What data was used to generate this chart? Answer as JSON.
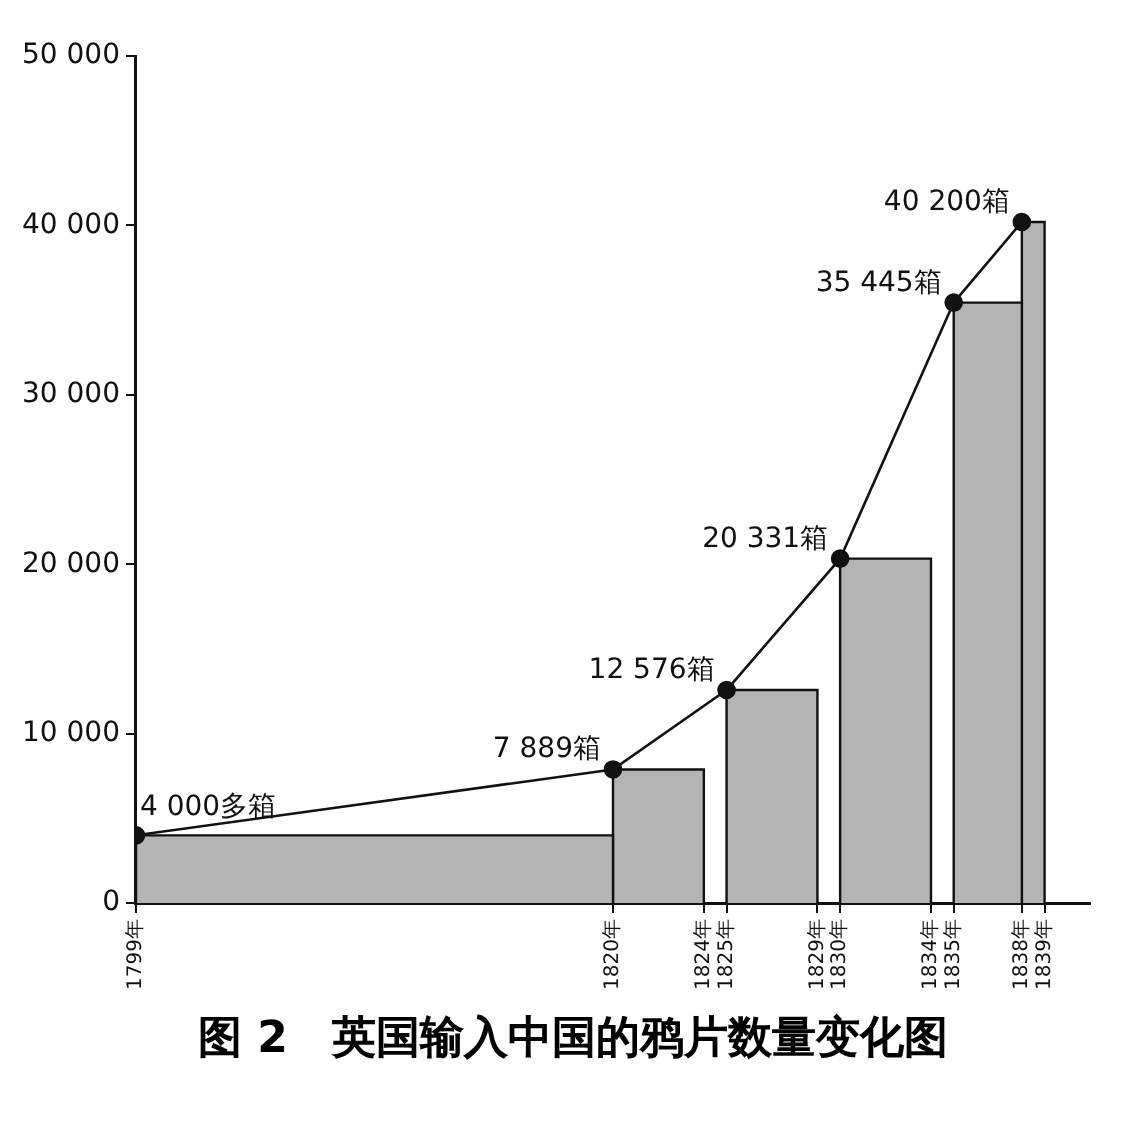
{
  "chart_data": {
    "type": "histogram",
    "title": "图 2　英国输入中国的鸦片数量变化图",
    "xlim": [
      1799,
      1841
    ],
    "xticks": [
      {
        "value": 1799,
        "label": "1799年"
      },
      {
        "value": 1820,
        "label": "1820年"
      },
      {
        "value": 1824,
        "label": "1824年"
      },
      {
        "value": 1825,
        "label": "1825年"
      },
      {
        "value": 1829,
        "label": "1829年"
      },
      {
        "value": 1830,
        "label": "1830年"
      },
      {
        "value": 1834,
        "label": "1834年"
      },
      {
        "value": 1835,
        "label": "1835年"
      },
      {
        "value": 1838,
        "label": "1838年"
      },
      {
        "value": 1839,
        "label": "1839年"
      }
    ],
    "ylim": [
      0,
      50000
    ],
    "yticks": [
      {
        "value": 0,
        "label": "0"
      },
      {
        "value": 10000,
        "label": "10 000"
      },
      {
        "value": 20000,
        "label": "20 000"
      },
      {
        "value": 30000,
        "label": "30 000"
      },
      {
        "value": 40000,
        "label": "40 000"
      },
      {
        "value": 50000,
        "label": "50 000"
      }
    ],
    "series": [
      {
        "color": "#b4b4b4",
        "bins": [
          1799,
          1820,
          1824,
          1825,
          1829,
          1830,
          1834,
          1835,
          1838,
          1839
        ],
        "values": [
          4000,
          7889,
          null,
          12576,
          null,
          20331,
          null,
          35445,
          40200
        ]
      },
      {
        "type": "line",
        "color": "#111111",
        "marker": "circle",
        "x": [
          1799,
          1820,
          1825,
          1830,
          1835,
          1838
        ],
        "values": [
          4000,
          7889,
          12576,
          20331,
          35445,
          40200
        ],
        "value_labels": [
          "4 000多箱",
          "7 889箱",
          "12 576箱",
          "20 331箱",
          "35 445箱",
          "40 200箱"
        ]
      }
    ],
    "grid": false,
    "legend": false
  }
}
